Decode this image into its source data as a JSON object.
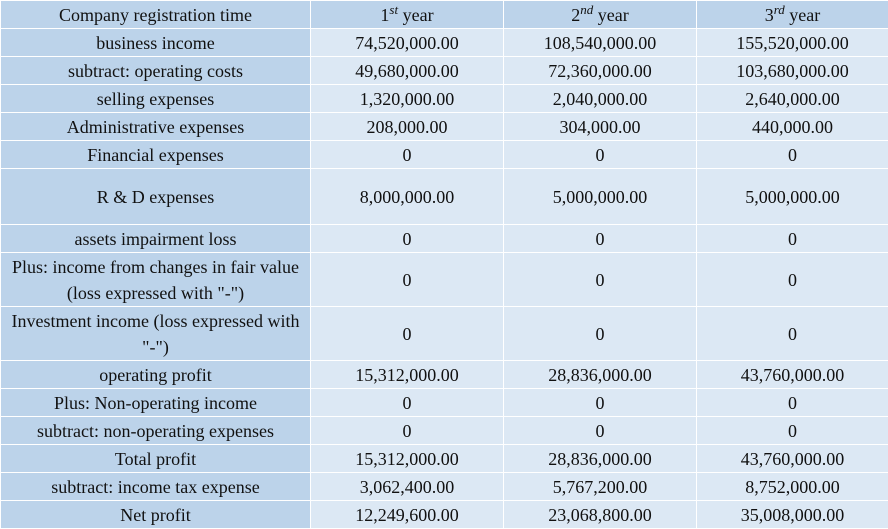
{
  "header": {
    "label_col": "Company registration time",
    "years": [
      {
        "num": "1",
        "ord": "st",
        "word": "year"
      },
      {
        "num": "2",
        "ord": "nd",
        "word": "year"
      },
      {
        "num": "3",
        "ord": "rd",
        "word": "year"
      }
    ]
  },
  "rows": [
    {
      "label": "business income",
      "values": [
        "74,520,000.00",
        "108,540,000.00",
        "155,520,000.00"
      ]
    },
    {
      "label": "subtract: operating costs",
      "values": [
        "49,680,000.00",
        "72,360,000.00",
        "103,680,000.00"
      ]
    },
    {
      "label": "selling expenses",
      "values": [
        "1,320,000.00",
        "2,040,000.00",
        "2,640,000.00"
      ]
    },
    {
      "label": "Administrative expenses",
      "values": [
        "208,000.00",
        "304,000.00",
        "440,000.00"
      ]
    },
    {
      "label": "Financial expenses",
      "values": [
        "0",
        "0",
        "0"
      ]
    },
    {
      "label": "R & D expenses",
      "values": [
        "8,000,000.00",
        "5,000,000.00",
        "5,000,000.00"
      ]
    },
    {
      "label": "assets impairment loss",
      "values": [
        "0",
        "0",
        "0"
      ]
    },
    {
      "label": "Plus: income from changes in fair value (loss expressed with \"-\")",
      "values": [
        "0",
        "0",
        "0"
      ]
    },
    {
      "label": "Investment income (loss expressed with \"-\")",
      "values": [
        "0",
        "0",
        "0"
      ]
    },
    {
      "label": "operating profit",
      "values": [
        "15,312,000.00",
        "28,836,000.00",
        "43,760,000.00"
      ]
    },
    {
      "label": "Plus: Non-operating income",
      "values": [
        "0",
        "0",
        "0"
      ]
    },
    {
      "label": "subtract: non-operating expenses",
      "values": [
        "0",
        "0",
        "0"
      ]
    },
    {
      "label": "Total profit",
      "values": [
        "15,312,000.00",
        "28,836,000.00",
        "43,760,000.00"
      ]
    },
    {
      "label": "subtract: income tax expense",
      "values": [
        "3,062,400.00",
        "5,767,200.00",
        "8,752,000.00"
      ]
    },
    {
      "label": "Net profit",
      "values": [
        "12,249,600.00",
        "23,068,800.00",
        "35,008,000.00"
      ]
    }
  ]
}
